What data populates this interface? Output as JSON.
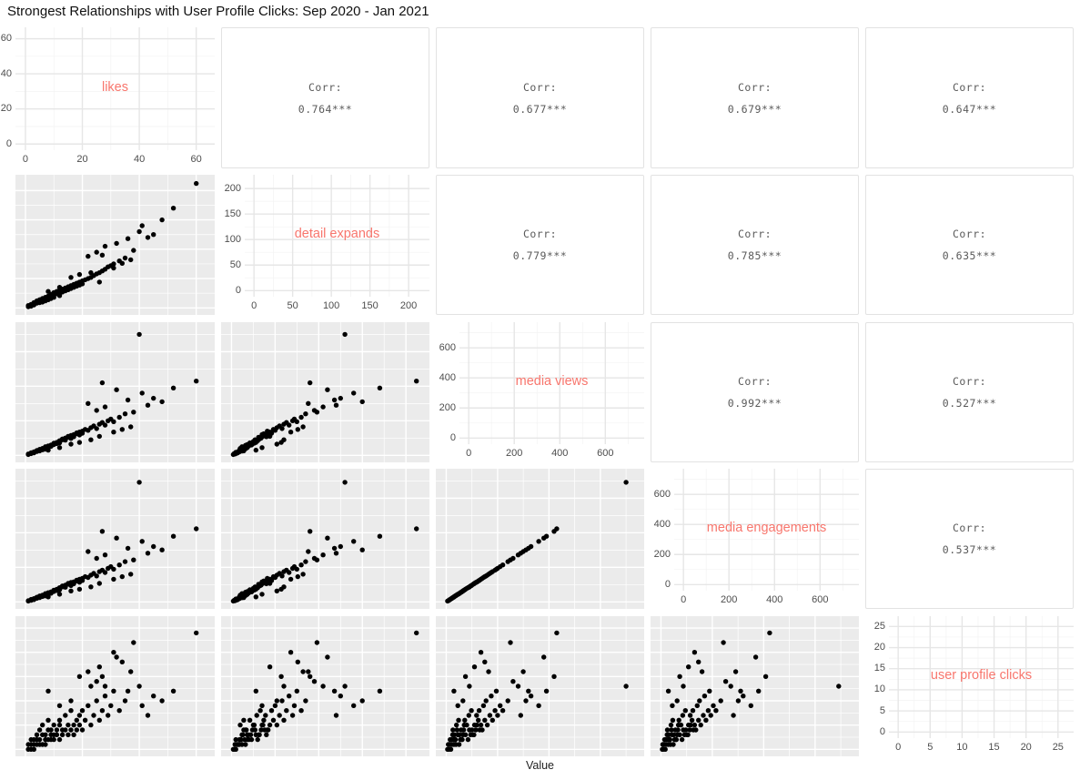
{
  "title": "Strongest Relationships with User Profile Clicks: Sep 2020 - Jan 2021",
  "x_axis_label": "Value",
  "colors": {
    "diag_label": "#F8766D",
    "panel_bg": "#EBEBEB",
    "grid_major_on_gray": "#FFFFFF",
    "grid_minor_on_gray": "#FFFFFF",
    "grid_major_on_white": "#E6E6E6",
    "grid_minor_on_white": "#F3F3F3",
    "point": "#000000",
    "corr_text": "#5A5A5A",
    "tick_text": "#4D4D4D",
    "corr_border": "#E2E2E2"
  },
  "chart_data": {
    "type": "scatter",
    "subtype": "scatterplot-matrix",
    "title": "Strongest Relationships with User Profile Clicks: Sep 2020 - Jan 2021",
    "xlabel": "Value",
    "legend": "none",
    "grid": true,
    "variables": [
      {
        "key": "likes",
        "label": "likes",
        "ticks": [
          0,
          20,
          40,
          60
        ],
        "minor": [
          10,
          30,
          50
        ],
        "max": 63
      },
      {
        "key": "detail_expands",
        "label": "detail expands",
        "ticks": [
          0,
          50,
          100,
          150,
          200
        ],
        "minor": [
          25,
          75,
          125,
          175
        ],
        "max": 215
      },
      {
        "key": "media_views",
        "label": "media views",
        "ticks": [
          0,
          200,
          400,
          600
        ],
        "minor": [
          100,
          300,
          500,
          700
        ],
        "max": 730
      },
      {
        "key": "media_engagements",
        "label": "media engagements",
        "ticks": [
          0,
          200,
          400,
          600
        ],
        "minor": [
          100,
          300,
          500,
          700
        ],
        "max": 730
      },
      {
        "key": "user_profile_clicks",
        "label": "user profile clicks",
        "ticks": [
          0,
          5,
          10,
          15,
          20,
          25
        ],
        "minor": [
          2.5,
          7.5,
          12.5,
          17.5,
          22.5
        ],
        "max": 26
      }
    ],
    "correlation_label": "Corr:",
    "correlations": [
      {
        "row_index": 0,
        "col_index": 1,
        "row": "likes",
        "col": "detail_expands",
        "value": "0.764***"
      },
      {
        "row_index": 0,
        "col_index": 2,
        "row": "likes",
        "col": "media_views",
        "value": "0.677***"
      },
      {
        "row_index": 0,
        "col_index": 3,
        "row": "likes",
        "col": "media_engagements",
        "value": "0.679***"
      },
      {
        "row_index": 0,
        "col_index": 4,
        "row": "likes",
        "col": "user_profile_clicks",
        "value": "0.647***"
      },
      {
        "row_index": 1,
        "col_index": 2,
        "row": "detail_expands",
        "col": "media_views",
        "value": "0.779***"
      },
      {
        "row_index": 1,
        "col_index": 3,
        "row": "detail_expands",
        "col": "media_engagements",
        "value": "0.785***"
      },
      {
        "row_index": 1,
        "col_index": 4,
        "row": "detail_expands",
        "col": "user_profile_clicks",
        "value": "0.635***"
      },
      {
        "row_index": 2,
        "col_index": 3,
        "row": "media_views",
        "col": "media_engagements",
        "value": "0.992***"
      },
      {
        "row_index": 2,
        "col_index": 4,
        "row": "media_views",
        "col": "user_profile_clicks",
        "value": "0.527***"
      },
      {
        "row_index": 3,
        "col_index": 4,
        "row": "media_engagements",
        "col": "user_profile_clicks",
        "value": "0.537***"
      }
    ],
    "observation_fields": [
      "likes",
      "detail_expands",
      "media_views",
      "media_engagements",
      "user_profile_clicks"
    ],
    "observations": [
      [
        1,
        2,
        5,
        5,
        0
      ],
      [
        1,
        4,
        8,
        7,
        1
      ],
      [
        2,
        3,
        10,
        9,
        0
      ],
      [
        2,
        6,
        12,
        11,
        1
      ],
      [
        2,
        5,
        15,
        14,
        2
      ],
      [
        3,
        7,
        14,
        13,
        1
      ],
      [
        3,
        9,
        20,
        19,
        2
      ],
      [
        3,
        5,
        18,
        17,
        0
      ],
      [
        4,
        8,
        22,
        21,
        1
      ],
      [
        4,
        12,
        25,
        24,
        3
      ],
      [
        4,
        10,
        28,
        27,
        2
      ],
      [
        5,
        9,
        30,
        29,
        1
      ],
      [
        5,
        14,
        26,
        25,
        4
      ],
      [
        5,
        11,
        35,
        34,
        2
      ],
      [
        6,
        13,
        32,
        31,
        3
      ],
      [
        6,
        16,
        38,
        37,
        1
      ],
      [
        6,
        10,
        40,
        39,
        5
      ],
      [
        7,
        15,
        36,
        35,
        2
      ],
      [
        7,
        18,
        45,
        43,
        3
      ],
      [
        7,
        12,
        50,
        48,
        1
      ],
      [
        8,
        17,
        42,
        41,
        4
      ],
      [
        8,
        20,
        55,
        53,
        2
      ],
      [
        8,
        14,
        48,
        46,
        6
      ],
      [
        9,
        19,
        52,
        50,
        3
      ],
      [
        9,
        23,
        60,
        58,
        2
      ],
      [
        9,
        16,
        58,
        56,
        4
      ],
      [
        10,
        22,
        65,
        63,
        3
      ],
      [
        10,
        26,
        70,
        68,
        5
      ],
      [
        10,
        18,
        62,
        60,
        2
      ],
      [
        11,
        24,
        68,
        66,
        4
      ],
      [
        11,
        28,
        75,
        73,
        3
      ],
      [
        12,
        25,
        80,
        78,
        5
      ],
      [
        12,
        30,
        85,
        82,
        2
      ],
      [
        12,
        21,
        72,
        70,
        6
      ],
      [
        13,
        27,
        90,
        87,
        4
      ],
      [
        13,
        32,
        95,
        92,
        3
      ],
      [
        14,
        29,
        88,
        85,
        7
      ],
      [
        14,
        34,
        100,
        97,
        4
      ],
      [
        15,
        31,
        105,
        102,
        3
      ],
      [
        15,
        36,
        110,
        107,
        5
      ],
      [
        16,
        33,
        98,
        95,
        8
      ],
      [
        16,
        38,
        115,
        112,
        4
      ],
      [
        17,
        35,
        120,
        116,
        5
      ],
      [
        17,
        40,
        108,
        105,
        3
      ],
      [
        18,
        37,
        125,
        121,
        6
      ],
      [
        18,
        42,
        130,
        126,
        4
      ],
      [
        19,
        39,
        118,
        114,
        7
      ],
      [
        19,
        44,
        135,
        131,
        5
      ],
      [
        20,
        41,
        140,
        136,
        4
      ],
      [
        20,
        46,
        128,
        124,
        8
      ],
      [
        21,
        48,
        150,
        146,
        6
      ],
      [
        22,
        50,
        145,
        141,
        9
      ],
      [
        23,
        52,
        160,
        155,
        5
      ],
      [
        24,
        55,
        170,
        165,
        7
      ],
      [
        25,
        58,
        155,
        150,
        10
      ],
      [
        26,
        60,
        180,
        175,
        6
      ],
      [
        27,
        63,
        190,
        184,
        8
      ],
      [
        28,
        66,
        175,
        170,
        11
      ],
      [
        29,
        70,
        200,
        194,
        7
      ],
      [
        30,
        72,
        210,
        204,
        9
      ],
      [
        31,
        75,
        195,
        189,
        12
      ],
      [
        33,
        80,
        220,
        214,
        8
      ],
      [
        35,
        85,
        240,
        233,
        10
      ],
      [
        25,
        95,
        260,
        252,
        14
      ],
      [
        28,
        105,
        280,
        272,
        13
      ],
      [
        22,
        88,
        300,
        291,
        16
      ],
      [
        36,
        118,
        320,
        310,
        12
      ],
      [
        40,
        130,
        700,
        692,
        13
      ],
      [
        60,
        212,
        430,
        423,
        24
      ],
      [
        41,
        140,
        360,
        350,
        9
      ],
      [
        32,
        110,
        380,
        369,
        19
      ],
      [
        27,
        90,
        420,
        408,
        15
      ],
      [
        45,
        125,
        330,
        320,
        11
      ],
      [
        38,
        98,
        250,
        243,
        22
      ],
      [
        34,
        76,
        150,
        146,
        18
      ],
      [
        23,
        60,
        90,
        87,
        13
      ],
      [
        16,
        52,
        65,
        63,
        10
      ],
      [
        12,
        35,
        45,
        44,
        9
      ],
      [
        8,
        28,
        30,
        29,
        12
      ],
      [
        19,
        57,
        75,
        73,
        15
      ],
      [
        26,
        44,
        110,
        107,
        17
      ],
      [
        31,
        68,
        135,
        131,
        20
      ],
      [
        37,
        82,
        165,
        160,
        16
      ],
      [
        43,
        120,
        290,
        282,
        7
      ],
      [
        48,
        150,
        310,
        301,
        10
      ],
      [
        52,
        170,
        390,
        380,
        12
      ]
    ]
  }
}
